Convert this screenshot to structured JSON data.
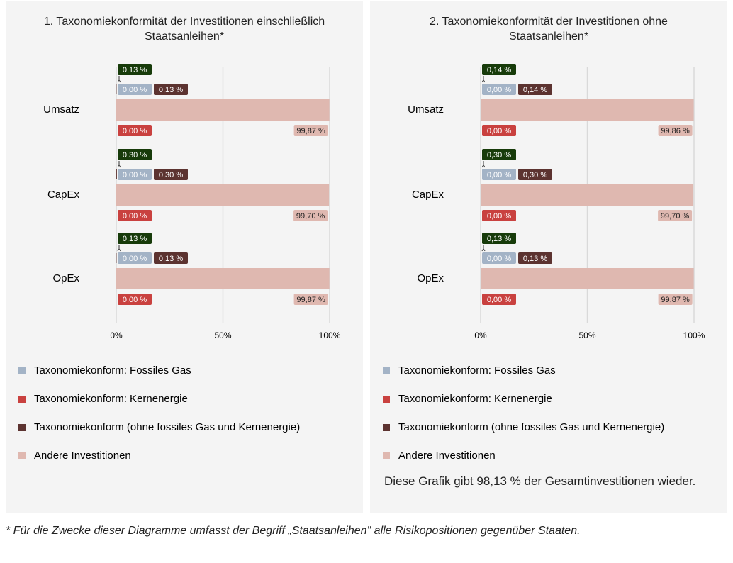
{
  "chart_data": [
    {
      "type": "bar",
      "title": "1. Taxonomiekonformität der Investitionen einschließlich Staatsanleihen*",
      "categories": [
        "Umsatz",
        "CapEx",
        "OpEx"
      ],
      "series": [
        {
          "name": "Taxonomiekonform: Fossiles Gas",
          "color": "#a3b3c6",
          "values": [
            0,
            0,
            0
          ],
          "value_labels": [
            "0,00 %",
            "0,00 %",
            "0,00 %"
          ]
        },
        {
          "name": "Taxonomiekonform: Kernenergie",
          "color": "#c9413f",
          "values": [
            0,
            0,
            0
          ],
          "value_labels": [
            "0,00 %",
            "0,00 %",
            "0,00 %"
          ]
        },
        {
          "name": "Taxonomiekonform (ohne fossiles Gas und Kernenergie)",
          "color": "#5c3330",
          "values": [
            0.13,
            0.3,
            0.13
          ],
          "value_labels": [
            "0,13 %",
            "0,30 %",
            "0,13 %"
          ]
        },
        {
          "name": "Andere Investitionen",
          "color": "#dfb8b0",
          "values": [
            99.87,
            99.7,
            99.87
          ],
          "value_labels": [
            "99,87 %",
            "99,70 %",
            "99,87 %"
          ]
        }
      ],
      "totals": {
        "color": "#173b0a",
        "values": [
          0.13,
          0.3,
          0.13
        ],
        "value_labels": [
          "0,13 %",
          "0,30 %",
          "0,13 %"
        ]
      },
      "xlim": [
        0,
        100
      ],
      "xticks": [
        {
          "value": 0,
          "label": "0%"
        },
        {
          "value": 50,
          "label": "50%"
        },
        {
          "value": 100,
          "label": "100%"
        }
      ],
      "grid": true,
      "stacked": true
    },
    {
      "type": "bar",
      "title": "2. Taxonomiekonformität der Investitionen ohne Staatsanleihen*",
      "categories": [
        "Umsatz",
        "CapEx",
        "OpEx"
      ],
      "series": [
        {
          "name": "Taxonomiekonform: Fossiles Gas",
          "color": "#a3b3c6",
          "values": [
            0,
            0,
            0
          ],
          "value_labels": [
            "0,00 %",
            "0,00 %",
            "0,00 %"
          ]
        },
        {
          "name": "Taxonomiekonform: Kernenergie",
          "color": "#c9413f",
          "values": [
            0,
            0,
            0
          ],
          "value_labels": [
            "0,00 %",
            "0,00 %",
            "0,00 %"
          ]
        },
        {
          "name": "Taxonomiekonform (ohne fossiles Gas und Kernenergie)",
          "color": "#5c3330",
          "values": [
            0.14,
            0.3,
            0.13
          ],
          "value_labels": [
            "0,14 %",
            "0,30 %",
            "0,13 %"
          ]
        },
        {
          "name": "Andere Investitionen",
          "color": "#dfb8b0",
          "values": [
            99.86,
            99.7,
            99.87
          ],
          "value_labels": [
            "99,86 %",
            "99,70 %",
            "99,87 %"
          ]
        }
      ],
      "totals": {
        "color": "#173b0a",
        "values": [
          0.14,
          0.3,
          0.13
        ],
        "value_labels": [
          "0,14 %",
          "0,30 %",
          "0,13 %"
        ]
      },
      "xlim": [
        0,
        100
      ],
      "xticks": [
        {
          "value": 0,
          "label": "0%"
        },
        {
          "value": 50,
          "label": "50%"
        },
        {
          "value": 100,
          "label": "100%"
        }
      ],
      "grid": true,
      "stacked": true,
      "note": "Diese Grafik gibt 98,13 % der Gesamtinvestitionen wieder."
    }
  ],
  "footnote": "* Für die Zwecke dieser Diagramme umfasst der Begriff „Staatsanleihen\" alle Risikopositionen gegenüber Staaten."
}
